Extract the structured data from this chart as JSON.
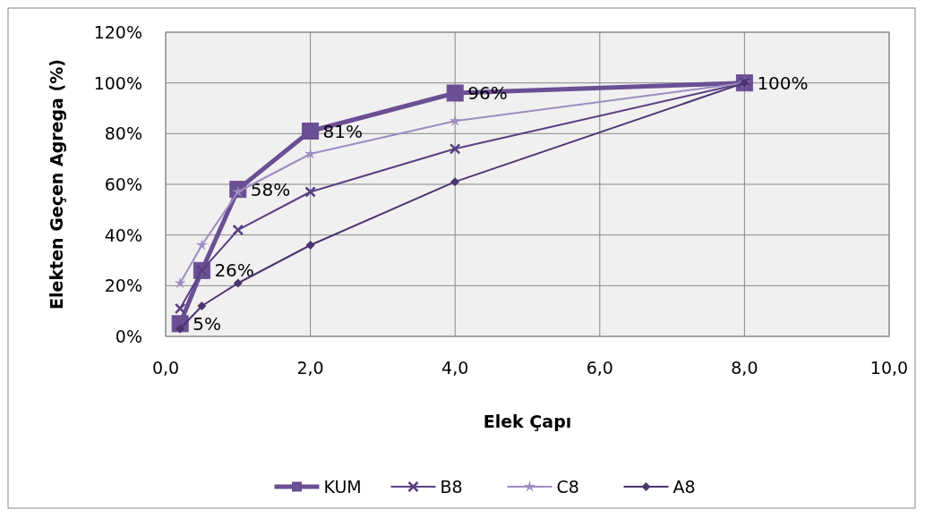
{
  "chart_data": {
    "type": "line",
    "xlabel": "Elek Çapı",
    "ylabel": "Elekten Geçen Agrega (%)",
    "x": [
      0.2,
      0.5,
      1,
      2,
      4,
      8
    ],
    "series": [
      {
        "name": "KUM",
        "color": "#6b4f94",
        "marker": "square",
        "values": [
          5,
          26,
          58,
          81,
          96,
          100
        ],
        "value_labels": [
          "5%",
          "26%",
          "58%",
          "81%",
          "96%",
          "100%"
        ]
      },
      {
        "name": "B8",
        "color": "#5a3f82",
        "marker": "cross",
        "values": [
          11,
          26,
          42,
          57,
          74,
          100
        ]
      },
      {
        "name": "C8",
        "color": "#9d8cc0",
        "marker": "star",
        "values": [
          21,
          36,
          57,
          72,
          85,
          100
        ]
      },
      {
        "name": "A8",
        "color": "#4b3470",
        "marker": "diamond",
        "values": [
          3,
          12,
          21,
          36,
          61,
          100
        ]
      }
    ],
    "xlim": [
      0,
      10
    ],
    "xticks": [
      {
        "value": 0,
        "label": "0,0"
      },
      {
        "value": 2,
        "label": "2,0"
      },
      {
        "value": 4,
        "label": "4,0"
      },
      {
        "value": 6,
        "label": "6,0"
      },
      {
        "value": 8,
        "label": "8,0"
      },
      {
        "value": 10,
        "label": "10,0"
      }
    ],
    "ylim": [
      0,
      120
    ],
    "yticks": [
      {
        "value": 0,
        "label": "0%"
      },
      {
        "value": 20,
        "label": "20%"
      },
      {
        "value": 40,
        "label": "40%"
      },
      {
        "value": 60,
        "label": "60%"
      },
      {
        "value": 80,
        "label": "80%"
      },
      {
        "value": 100,
        "label": "100%"
      },
      {
        "value": 120,
        "label": "120%"
      }
    ],
    "grid": true,
    "legend": "bottom",
    "line_style": "solid"
  }
}
